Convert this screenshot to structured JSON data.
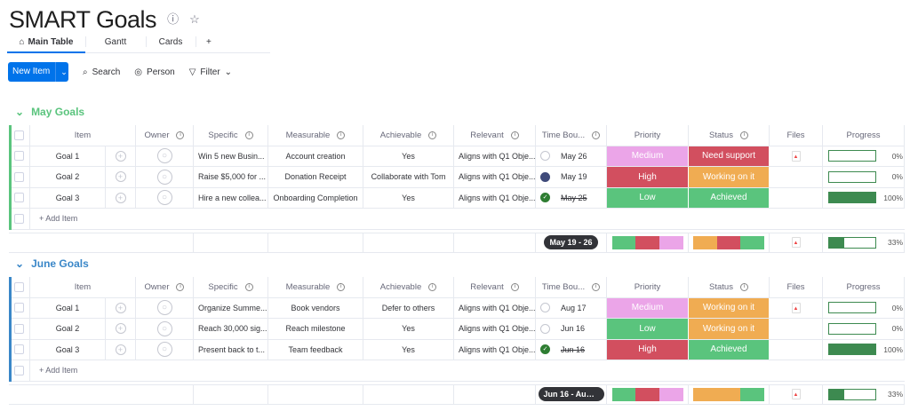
{
  "board": {
    "title": "SMART Goals"
  },
  "tabs": [
    {
      "label": "Main Table",
      "icon": "home-icon",
      "active": true
    },
    {
      "label": "Gantt"
    },
    {
      "label": "Cards"
    },
    {
      "label": "+"
    }
  ],
  "toolbar": {
    "new_item": "New Item",
    "search": "Search",
    "person": "Person",
    "filter": "Filter"
  },
  "columns": [
    "Item",
    "Owner",
    "Specific",
    "Measurable",
    "Achievable",
    "Relevant",
    "Time Bou...",
    "Priority",
    "Status",
    "Files",
    "Progress"
  ],
  "colors": {
    "medium": "#eba5e8",
    "high": "#d24f5f",
    "low": "#5ac47d",
    "need_support": "#d24f5f",
    "working": "#f0ac52",
    "achieved": "#5ac47d",
    "may": "#5ac47d",
    "june": "#3a87c8"
  },
  "add_item": "+ Add Item",
  "groups": [
    {
      "name": "May Goals",
      "color": "#5ac47d",
      "rows": [
        {
          "item": "Goal 1",
          "specific": "Win 5 new Busin...",
          "measurable": "Account creation",
          "achievable": "Yes",
          "relevant": "Aligns with Q1 Obje...",
          "time_state": "empty",
          "date": "May 26",
          "priority": "Medium",
          "priority_color": "#eba5e8",
          "status": "Need support",
          "status_color": "#d24f5f",
          "file": true,
          "progress": 0,
          "progress_label": "0%"
        },
        {
          "item": "Goal 2",
          "specific": "Raise $5,000 for ...",
          "measurable": "Donation Receipt",
          "achievable": "Collaborate with Tom",
          "relevant": "Aligns with Q1 Obje...",
          "time_state": "half",
          "date": "May 19",
          "priority": "High",
          "priority_color": "#d24f5f",
          "status": "Working on it",
          "status_color": "#f0ac52",
          "file": false,
          "progress": 0,
          "progress_label": "0%"
        },
        {
          "item": "Goal 3",
          "specific": "Hire a new collea...",
          "measurable": "Onboarding Completion",
          "achievable": "Yes",
          "relevant": "Aligns with Q1 Obje...",
          "time_state": "done",
          "date": "May 25",
          "priority": "Low",
          "priority_color": "#5ac47d",
          "status": "Achieved",
          "status_color": "#5ac47d",
          "file": false,
          "progress": 100,
          "progress_label": "100%"
        }
      ],
      "summary": {
        "timeline": "May 19 - 26",
        "priority_dist": [
          "#5ac47d",
          "#d24f5f",
          "#eba5e8"
        ],
        "status_dist": [
          "#f0ac52",
          "#d24f5f",
          "#5ac47d"
        ],
        "progress": 33,
        "progress_label": "33%"
      }
    },
    {
      "name": "June Goals",
      "color": "#3a87c8",
      "rows": [
        {
          "item": "Goal 1",
          "specific": "Organize Summe...",
          "measurable": "Book vendors",
          "achievable": "Defer to others",
          "relevant": "Aligns with Q1 Obje...",
          "time_state": "empty",
          "date": "Aug 17",
          "priority": "Medium",
          "priority_color": "#eba5e8",
          "status": "Working on it",
          "status_color": "#f0ac52",
          "file": true,
          "progress": 0,
          "progress_label": "0%"
        },
        {
          "item": "Goal 2",
          "specific": "Reach 30,000 sig...",
          "measurable": "Reach milestone",
          "achievable": "Yes",
          "relevant": "Aligns with Q1 Obje...",
          "time_state": "empty",
          "date": "Jun 16",
          "priority": "Low",
          "priority_color": "#5ac47d",
          "status": "Working on it",
          "status_color": "#f0ac52",
          "file": false,
          "progress": 0,
          "progress_label": "0%"
        },
        {
          "item": "Goal 3",
          "specific": "Present back to t...",
          "measurable": "Team feedback",
          "achievable": "Yes",
          "relevant": "Aligns with Q1 Obje...",
          "time_state": "done",
          "date": "Jun 16",
          "priority": "High",
          "priority_color": "#d24f5f",
          "status": "Achieved",
          "status_color": "#5ac47d",
          "file": false,
          "progress": 100,
          "progress_label": "100%"
        }
      ],
      "summary": {
        "timeline": "Jun 16 - Aug ...",
        "priority_dist": [
          "#5ac47d",
          "#d24f5f",
          "#eba5e8"
        ],
        "status_dist": [
          "#f0ac52",
          "#f0ac52",
          "#5ac47d"
        ],
        "progress": 33,
        "progress_label": "33%"
      }
    }
  ]
}
